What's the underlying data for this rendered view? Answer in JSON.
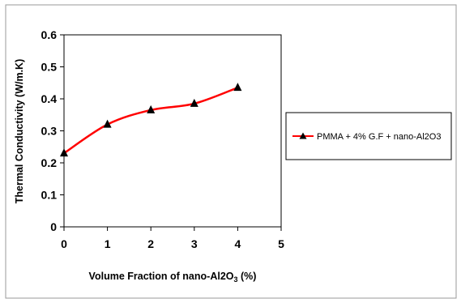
{
  "chart_data": {
    "type": "line",
    "xlabel": "Volume Fraction of nano-Al2O3 (%)",
    "ylabel": "Thermal Conductivity (W/m.K)",
    "xlim": [
      0,
      5
    ],
    "ylim": [
      0,
      0.6
    ],
    "x_ticks": [
      "0",
      "1",
      "2",
      "3",
      "4",
      "5"
    ],
    "y_ticks": [
      "0",
      "0.1",
      "0.2",
      "0.3",
      "0.4",
      "0.5",
      "0.6"
    ],
    "series": [
      {
        "name": "PMMA + 4% G.F + nano-Al2O3",
        "x": [
          0,
          1,
          2,
          3,
          4
        ],
        "y": [
          0.23,
          0.32,
          0.365,
          0.385,
          0.435
        ],
        "color": "#ff0000",
        "marker": "triangle",
        "marker_color": "#000000",
        "smooth": true
      }
    ],
    "grid": false,
    "legend_position": "right"
  }
}
